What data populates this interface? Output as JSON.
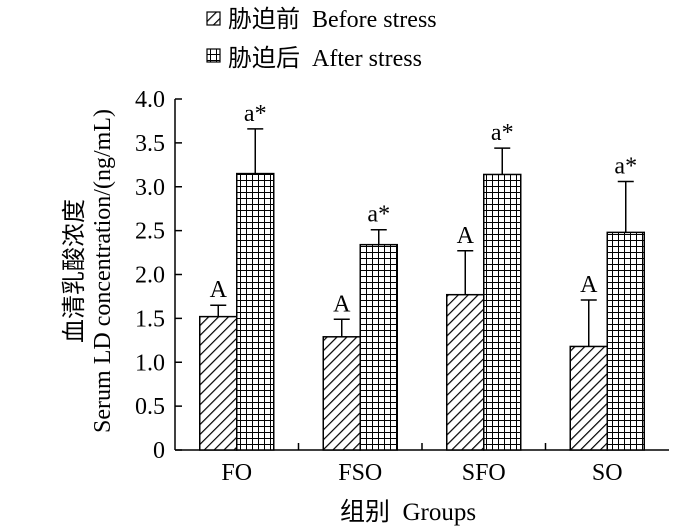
{
  "chart_data": {
    "type": "bar",
    "xlabel": "组别  Groups",
    "ylabel_lines": [
      "血清乳酸浓度",
      "Serum LD concentration/(ng/mL)"
    ],
    "ylim": [
      0,
      4.0
    ],
    "yticks": [
      "0",
      "0.5",
      "1.0",
      "1.5",
      "2.0",
      "2.5",
      "3.0",
      "3.5",
      "4.0"
    ],
    "categories": [
      "FO",
      "FSO",
      "SFO",
      "SO"
    ],
    "legend_position": "top-left",
    "series": [
      {
        "name": "胁迫前  Before stress",
        "pattern": "diagonal-hatch",
        "values": [
          1.52,
          1.29,
          1.77,
          1.18
        ],
        "errors": [
          0.13,
          0.2,
          0.5,
          0.53
        ],
        "labels": [
          "A",
          "A",
          "A",
          "A"
        ]
      },
      {
        "name": "胁迫后  After stress",
        "pattern": "grid-hatch",
        "values": [
          3.15,
          2.34,
          3.14,
          2.48
        ],
        "errors": [
          0.51,
          0.17,
          0.3,
          0.58
        ],
        "labels": [
          "a*",
          "a*",
          "a*",
          "a*"
        ]
      }
    ]
  }
}
